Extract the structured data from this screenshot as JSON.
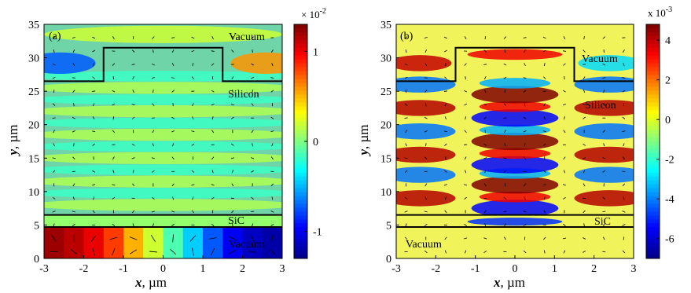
{
  "colors": {
    "colormap": [
      "#00008f",
      "#0000ff",
      "#0080ff",
      "#00ffff",
      "#80ff80",
      "#ffff00",
      "#ff8000",
      "#ff0000",
      "#800000"
    ],
    "background_a": "#6fd4a8",
    "background_b": "#f1f35a",
    "outline": "#000000"
  },
  "chart_data": [
    {
      "type": "heatmap",
      "panel": "(a)",
      "xlabel_var": "x",
      "xlabel_unit": ", µm",
      "ylabel_var": "y",
      "ylabel_unit": ", µm",
      "xlim": [
        -3,
        3
      ],
      "ylim": [
        0,
        35
      ],
      "xticks": [
        "-3",
        "-2",
        "-1",
        "0",
        "1",
        "2",
        "3"
      ],
      "yticks": [
        "0",
        "5",
        "10",
        "15",
        "20",
        "25",
        "30",
        "35"
      ],
      "region_labels": [
        "Vacuum",
        "Silicon",
        "SiC",
        "Vacuum"
      ],
      "colorbar": {
        "exponent_prefix": "× 10",
        "exponent_power": "-2",
        "range": [
          -1.3,
          1.3
        ],
        "ticks": [
          {
            "value": 1,
            "label": "1"
          },
          {
            "value": 0,
            "label": "0"
          },
          {
            "value": -1,
            "label": "-1"
          }
        ]
      },
      "geometry": {
        "vacuum_bottom": [
          0,
          4.7
        ],
        "sic_layer": [
          4.7,
          6.5
        ],
        "silicon_slab_top": 26.5,
        "ridge_x": [
          -1.5,
          1.5
        ],
        "ridge_top": 31.5
      },
      "field_notes": "Weak horizontal banding in silicon; strong antisymmetric field in bottom vacuum (positive left, negative right)"
    },
    {
      "type": "heatmap",
      "panel": "(b)",
      "xlabel_var": "x",
      "xlabel_unit": ", µm",
      "ylabel_var": "y",
      "ylabel_unit": ", µm",
      "xlim": [
        -3,
        3
      ],
      "ylim": [
        0,
        35
      ],
      "xticks": [
        "-3",
        "-2",
        "-1",
        "0",
        "1",
        "2",
        "3"
      ],
      "yticks": [
        "0",
        "5",
        "10",
        "15",
        "20",
        "25",
        "30",
        "35"
      ],
      "region_labels": [
        "Vacuum",
        "Silicon",
        "SiC",
        "Vacuum"
      ],
      "colorbar": {
        "exponent_prefix": "x 10",
        "exponent_power": "-3",
        "range": [
          -7,
          4.8
        ],
        "ticks": [
          {
            "value": 4,
            "label": "4"
          },
          {
            "value": 2,
            "label": "2"
          },
          {
            "value": 0,
            "label": "0"
          },
          {
            "value": -2,
            "label": "-2"
          },
          {
            "value": -4,
            "label": "-4"
          },
          {
            "value": -6,
            "label": "-6"
          }
        ]
      },
      "geometry": {
        "vacuum_bottom": [
          0,
          4.7
        ],
        "sic_layer": [
          4.7,
          6.5
        ],
        "silicon_slab_top": 26.5,
        "ridge_x": [
          -1.5,
          1.5
        ],
        "ridge_top": 31.5
      },
      "field_notes": "Checkerboard-like alternating lobes in silicon; central column opposite sign to side columns"
    }
  ]
}
